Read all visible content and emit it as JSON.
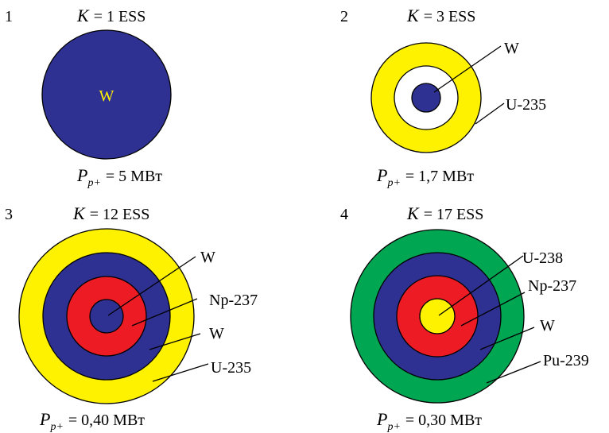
{
  "colors": {
    "W": "#2e3192",
    "U-235": "#fff200",
    "U-238": "#fff200",
    "Np-237": "#ed1c24",
    "Pu-239": "#00a651",
    "void": "#ffffff",
    "inner_label": "#fff200"
  },
  "panels": [
    {
      "number": "1",
      "k_symbol": "K",
      "k_rest": "= 1 ESS",
      "p_symbol": "P",
      "p_sub": "p+",
      "p_rest": "= 5 МВт",
      "inner_label": "W",
      "rings": [
        {
          "material": "W"
        }
      ],
      "labels": []
    },
    {
      "number": "2",
      "k_symbol": "K",
      "k_rest": "= 3 ESS",
      "p_symbol": "P",
      "p_sub": "p+",
      "p_rest": "= 1,7 МВт",
      "rings": [
        {
          "material": "U-235"
        },
        {
          "material": "void"
        },
        {
          "material": "W"
        }
      ],
      "labels": [
        "W",
        "U-235"
      ]
    },
    {
      "number": "3",
      "k_symbol": "K",
      "k_rest": "= 12 ESS",
      "p_symbol": "P",
      "p_sub": "p+",
      "p_rest": "= 0,40 МВт",
      "rings": [
        {
          "material": "U-235"
        },
        {
          "material": "W"
        },
        {
          "material": "Np-237"
        },
        {
          "material": "W"
        }
      ],
      "labels": [
        "W",
        "Np-237",
        "W",
        "U-235"
      ]
    },
    {
      "number": "4",
      "k_symbol": "K",
      "k_rest": "= 17 ESS",
      "p_symbol": "P",
      "p_sub": "p+",
      "p_rest": "= 0,30 МВт",
      "rings": [
        {
          "material": "Pu-239"
        },
        {
          "material": "W"
        },
        {
          "material": "Np-237"
        },
        {
          "material": "U-238"
        }
      ],
      "labels": [
        "U-238",
        "Np-237",
        "W",
        "Pu-239"
      ]
    }
  ]
}
